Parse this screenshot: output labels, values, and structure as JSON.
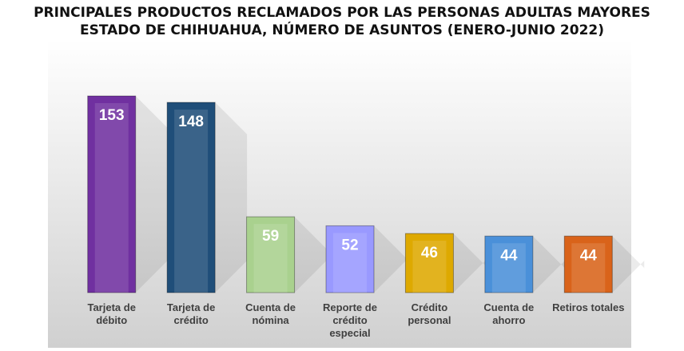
{
  "chart_data": {
    "type": "bar",
    "title": "PRINCIPALES PRODUCTOS RECLAMADOS POR LAS PERSONAS ADULTAS MAYORES",
    "subtitle": "ESTADO DE CHIHUAHUA, NÚMERO DE ASUNTOS (ENERO-JUNIO 2022)",
    "categories": [
      "Tarjeta de débito",
      "Tarjeta de crédito",
      "Cuenta de nómina",
      "Reporte de crédito especial",
      "Crédito personal",
      "Cuenta de ahorro",
      "Retiros totales"
    ],
    "values": [
      153,
      148,
      59,
      52,
      46,
      44,
      44
    ],
    "colors": [
      "#7030a0",
      "#1f4e79",
      "#a9d18e",
      "#9999ff",
      "#dea900",
      "#4a90d9",
      "#d9631a"
    ]
  }
}
